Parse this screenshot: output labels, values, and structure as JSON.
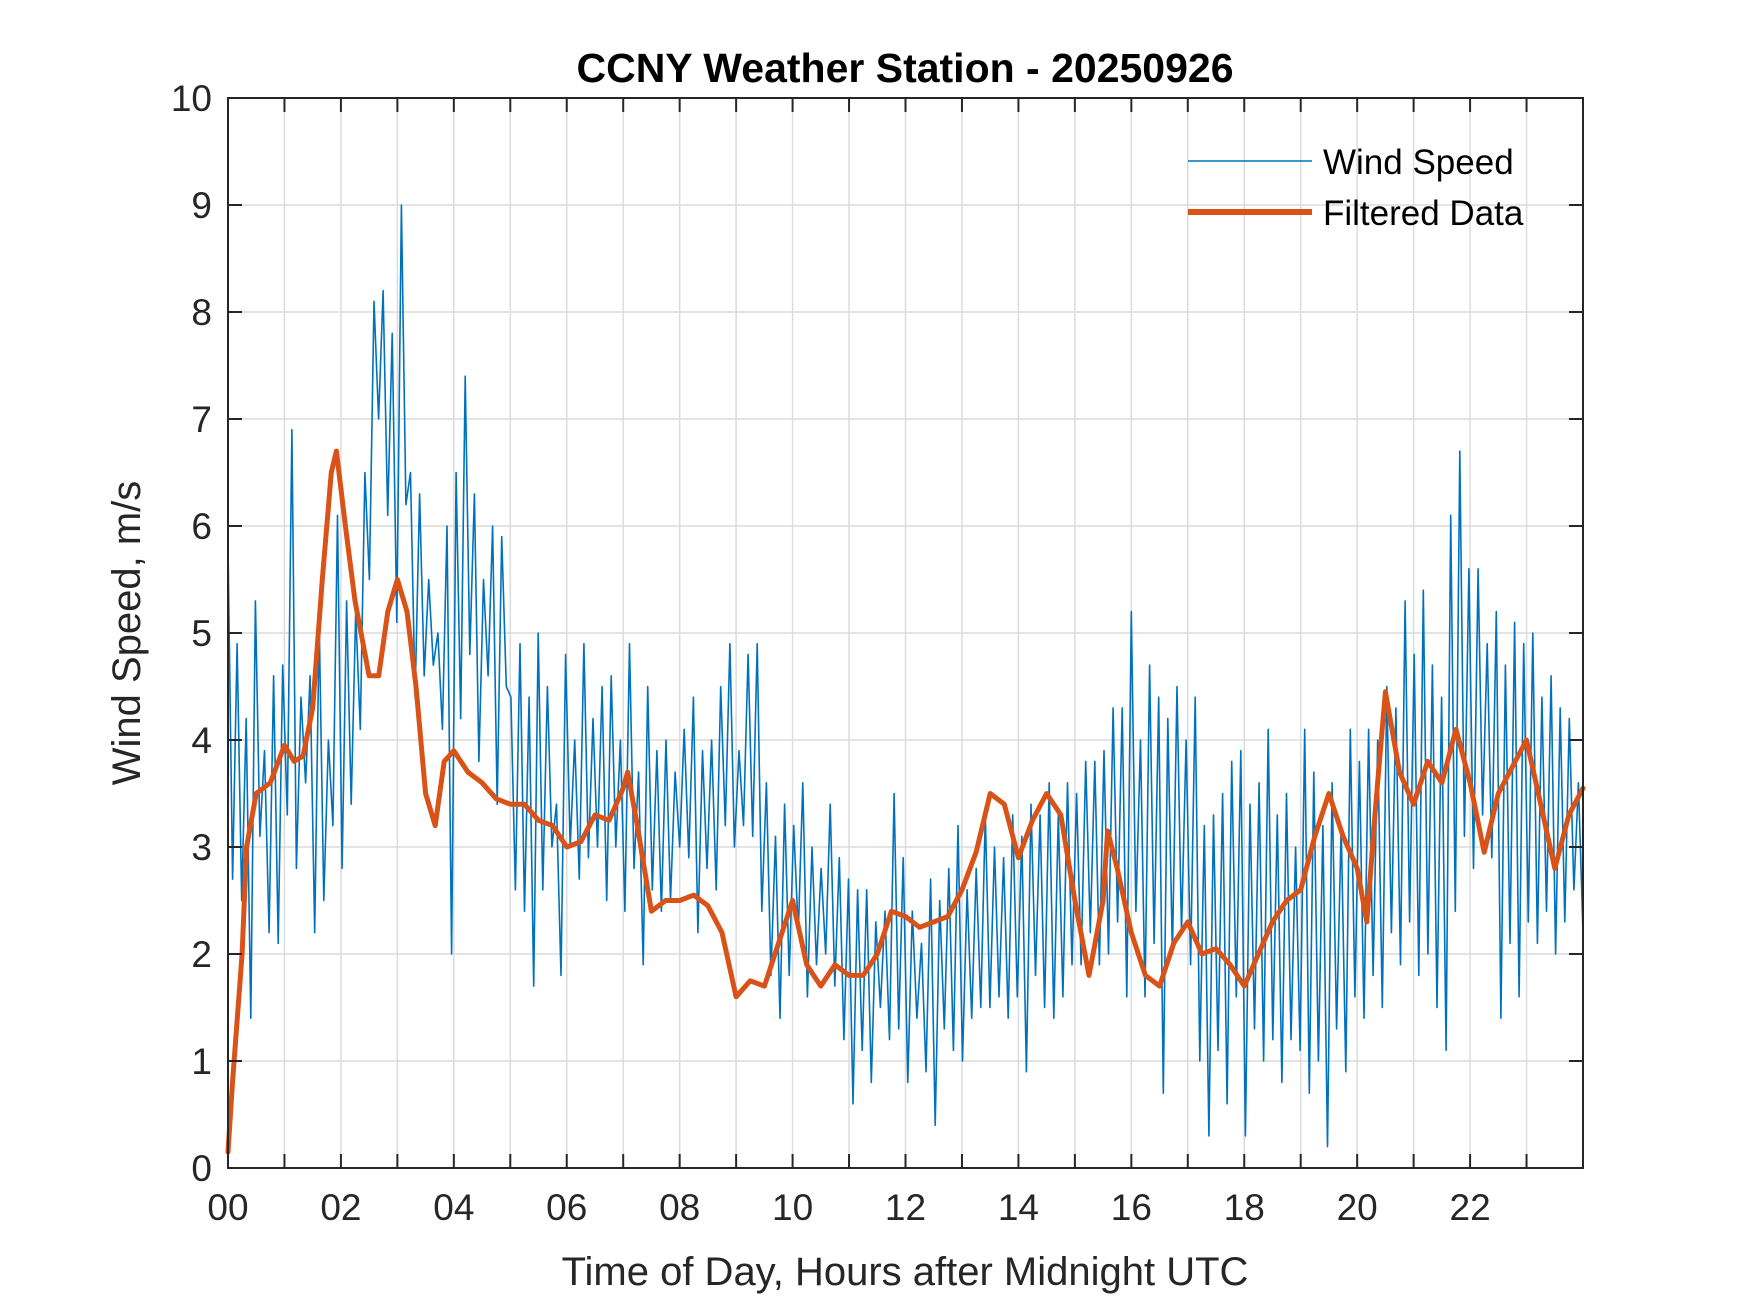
{
  "chart_data": {
    "type": "line",
    "title": "CCNY Weather Station - 20250926",
    "xlabel": "Time of Day, Hours after Midnight UTC",
    "ylabel": "Wind Speed, m/s",
    "xlim": [
      0,
      24
    ],
    "ylim": [
      0,
      10
    ],
    "grid": true,
    "legend_position": "top-right",
    "x_ticks": [
      0,
      2,
      4,
      6,
      8,
      10,
      12,
      14,
      16,
      18,
      20,
      22
    ],
    "x_tick_labels": [
      "00",
      "02",
      "04",
      "06",
      "08",
      "10",
      "12",
      "14",
      "16",
      "18",
      "20",
      "22"
    ],
    "x_minor_grid_step_hours": 1,
    "y_ticks": [
      0,
      1,
      2,
      3,
      4,
      5,
      6,
      7,
      8,
      9,
      10
    ],
    "y_tick_labels": [
      "0",
      "1",
      "2",
      "3",
      "4",
      "5",
      "6",
      "7",
      "8",
      "9",
      "10"
    ],
    "series": [
      {
        "name": "Wind Speed",
        "color": "#0072BD",
        "sample_interval_hours": 0.0833,
        "values": [
          5.8,
          2.7,
          4.9,
          2.5,
          4.2,
          1.4,
          5.3,
          3.1,
          3.9,
          2.2,
          4.6,
          2.1,
          4.7,
          3.3,
          6.9,
          2.8,
          4.4,
          3.6,
          4.6,
          2.2,
          5.1,
          2.5,
          4.0,
          3.2,
          6.1,
          2.8,
          5.3,
          3.4,
          5.2,
          4.1,
          6.5,
          5.5,
          8.1,
          7.0,
          8.2,
          6.1,
          7.8,
          5.1,
          9.0,
          6.2,
          6.5,
          4.4,
          6.3,
          4.6,
          5.5,
          4.7,
          5.0,
          4.1,
          6.0,
          2.0,
          6.5,
          4.2,
          7.4,
          4.8,
          6.3,
          3.8,
          5.5,
          4.6,
          6.0,
          3.4,
          5.9,
          4.5,
          4.4,
          2.6,
          4.9,
          2.4,
          4.4,
          1.7,
          5.0,
          2.6,
          4.5,
          3.0,
          3.4,
          1.8,
          4.8,
          3.0,
          4.0,
          2.7,
          4.9,
          2.9,
          4.2,
          3.0,
          4.5,
          2.5,
          4.6,
          3.0,
          4.0,
          2.4,
          4.9,
          2.8,
          3.7,
          1.9,
          4.5,
          2.6,
          3.9,
          2.4,
          4.0,
          2.5,
          3.7,
          3.0,
          4.1,
          2.9,
          4.4,
          2.2,
          3.9,
          2.8,
          4.0,
          2.6,
          4.5,
          3.2,
          4.9,
          3.0,
          3.9,
          3.2,
          4.8,
          3.1,
          4.9,
          2.4,
          3.6,
          1.8,
          3.1,
          1.4,
          3.4,
          1.8,
          3.2,
          2.2,
          3.6,
          1.6,
          3.0,
          1.9,
          2.8,
          2.0,
          3.4,
          1.7,
          2.9,
          1.2,
          2.7,
          0.6,
          2.6,
          1.1,
          2.6,
          0.8,
          2.3,
          1.5,
          2.4,
          1.2,
          3.5,
          1.3,
          2.9,
          0.8,
          2.4,
          1.4,
          2.1,
          0.9,
          2.7,
          0.4,
          2.5,
          1.3,
          2.8,
          1.1,
          3.2,
          1.0,
          2.6,
          1.4,
          2.8,
          1.5,
          3.3,
          1.5,
          3.0,
          1.6,
          2.9,
          1.4,
          3.3,
          1.6,
          3.1,
          0.9,
          3.4,
          1.8,
          3.3,
          1.5,
          3.6,
          1.4,
          3.3,
          1.6,
          3.6,
          1.9,
          3.5,
          1.9,
          3.8,
          2.2,
          3.8,
          1.9,
          3.9,
          2.0,
          4.3,
          2.3,
          4.3,
          1.6,
          5.2,
          2.4,
          4.0,
          1.6,
          4.7,
          2.1,
          4.4,
          0.7,
          4.2,
          2.0,
          4.5,
          2.2,
          4.0,
          1.9,
          4.4,
          1.0,
          3.2,
          0.3,
          3.3,
          1.1,
          3.5,
          0.6,
          3.8,
          1.6,
          3.9,
          0.3,
          3.4,
          1.3,
          3.6,
          1.0,
          4.1,
          1.2,
          3.3,
          0.8,
          3.5,
          1.2,
          3.0,
          1.1,
          4.1,
          0.7,
          3.7,
          1.0,
          3.2,
          0.2,
          3.6,
          1.3,
          3.2,
          0.9,
          4.1,
          1.6,
          3.8,
          1.4,
          4.1,
          1.8,
          4.0,
          1.5,
          4.5,
          2.2,
          4.3,
          1.9,
          5.3,
          2.3,
          4.8,
          1.8,
          5.4,
          2.0,
          4.7,
          1.5,
          4.4,
          1.1,
          6.1,
          2.4,
          6.7,
          3.1,
          5.6,
          2.8,
          5.6,
          3.3,
          4.9,
          2.9,
          5.2,
          1.4,
          4.7,
          2.1,
          5.1,
          1.6,
          4.9,
          2.3,
          5.0,
          2.1,
          4.4,
          2.4,
          4.6,
          2.0,
          4.3,
          2.3,
          4.2,
          2.6,
          3.6,
          2.2
        ]
      },
      {
        "name": "Filtered Data",
        "color": "#D95319",
        "points": [
          [
            0.0,
            0.15
          ],
          [
            0.08,
            0.8
          ],
          [
            0.25,
            2.0
          ],
          [
            0.33,
            3.0
          ],
          [
            0.5,
            3.5
          ],
          [
            0.75,
            3.6
          ],
          [
            1.0,
            3.95
          ],
          [
            1.17,
            3.8
          ],
          [
            1.33,
            3.85
          ],
          [
            1.5,
            4.3
          ],
          [
            1.67,
            5.5
          ],
          [
            1.83,
            6.5
          ],
          [
            1.92,
            6.7
          ],
          [
            2.08,
            6.0
          ],
          [
            2.25,
            5.3
          ],
          [
            2.5,
            4.6
          ],
          [
            2.67,
            4.6
          ],
          [
            2.83,
            5.2
          ],
          [
            3.0,
            5.5
          ],
          [
            3.17,
            5.2
          ],
          [
            3.33,
            4.5
          ],
          [
            3.5,
            3.5
          ],
          [
            3.67,
            3.2
          ],
          [
            3.83,
            3.8
          ],
          [
            4.0,
            3.9
          ],
          [
            4.25,
            3.7
          ],
          [
            4.5,
            3.6
          ],
          [
            4.75,
            3.45
          ],
          [
            5.0,
            3.4
          ],
          [
            5.25,
            3.4
          ],
          [
            5.5,
            3.25
          ],
          [
            5.75,
            3.2
          ],
          [
            6.0,
            3.0
          ],
          [
            6.25,
            3.05
          ],
          [
            6.5,
            3.3
          ],
          [
            6.75,
            3.25
          ],
          [
            7.0,
            3.55
          ],
          [
            7.08,
            3.7
          ],
          [
            7.25,
            3.2
          ],
          [
            7.5,
            2.4
          ],
          [
            7.75,
            2.5
          ],
          [
            8.0,
            2.5
          ],
          [
            8.25,
            2.55
          ],
          [
            8.5,
            2.45
          ],
          [
            8.75,
            2.2
          ],
          [
            9.0,
            1.6
          ],
          [
            9.25,
            1.75
          ],
          [
            9.5,
            1.7
          ],
          [
            9.75,
            2.1
          ],
          [
            10.0,
            2.5
          ],
          [
            10.25,
            1.9
          ],
          [
            10.5,
            1.7
          ],
          [
            10.75,
            1.9
          ],
          [
            11.0,
            1.8
          ],
          [
            11.25,
            1.8
          ],
          [
            11.5,
            2.0
          ],
          [
            11.75,
            2.4
          ],
          [
            12.0,
            2.35
          ],
          [
            12.25,
            2.25
          ],
          [
            12.5,
            2.3
          ],
          [
            12.75,
            2.35
          ],
          [
            13.0,
            2.6
          ],
          [
            13.25,
            2.95
          ],
          [
            13.5,
            3.5
          ],
          [
            13.75,
            3.4
          ],
          [
            14.0,
            2.9
          ],
          [
            14.25,
            3.25
          ],
          [
            14.5,
            3.5
          ],
          [
            14.75,
            3.3
          ],
          [
            15.0,
            2.5
          ],
          [
            15.25,
            1.8
          ],
          [
            15.5,
            2.5
          ],
          [
            15.58,
            3.15
          ],
          [
            15.75,
            2.8
          ],
          [
            16.0,
            2.2
          ],
          [
            16.25,
            1.8
          ],
          [
            16.5,
            1.7
          ],
          [
            16.75,
            2.1
          ],
          [
            17.0,
            2.3
          ],
          [
            17.25,
            2.0
          ],
          [
            17.5,
            2.05
          ],
          [
            17.75,
            1.9
          ],
          [
            18.0,
            1.7
          ],
          [
            18.25,
            2.0
          ],
          [
            18.5,
            2.3
          ],
          [
            18.75,
            2.5
          ],
          [
            19.0,
            2.6
          ],
          [
            19.25,
            3.1
          ],
          [
            19.5,
            3.5
          ],
          [
            19.75,
            3.1
          ],
          [
            20.0,
            2.8
          ],
          [
            20.17,
            2.3
          ],
          [
            20.33,
            3.4
          ],
          [
            20.5,
            4.45
          ],
          [
            20.75,
            3.7
          ],
          [
            21.0,
            3.4
          ],
          [
            21.25,
            3.8
          ],
          [
            21.5,
            3.6
          ],
          [
            21.75,
            4.1
          ],
          [
            22.0,
            3.6
          ],
          [
            22.25,
            2.95
          ],
          [
            22.5,
            3.5
          ],
          [
            22.75,
            3.75
          ],
          [
            23.0,
            4.0
          ],
          [
            23.25,
            3.4
          ],
          [
            23.5,
            2.8
          ],
          [
            23.75,
            3.3
          ],
          [
            24.0,
            3.55
          ]
        ]
      }
    ]
  }
}
